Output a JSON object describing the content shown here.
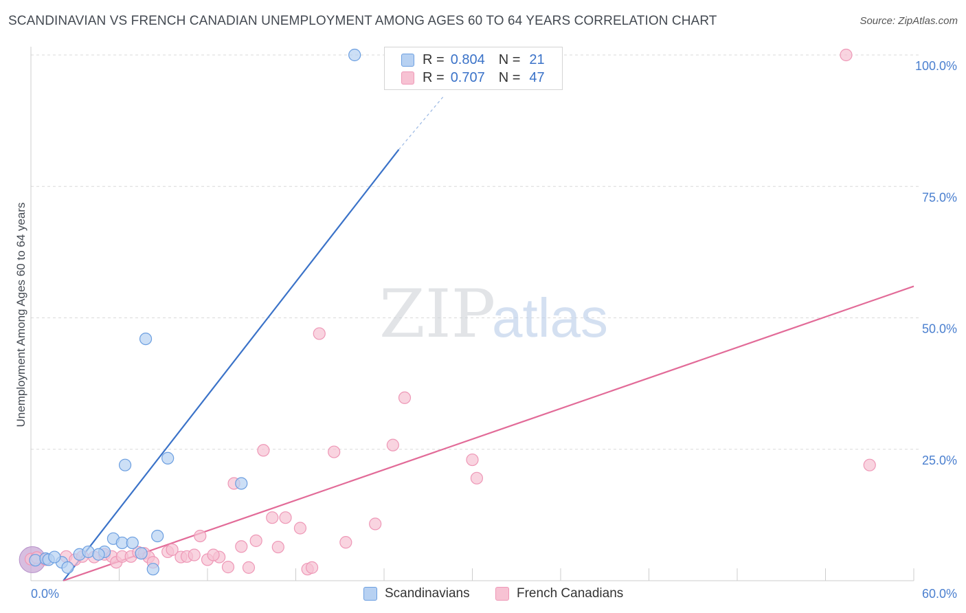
{
  "title": "SCANDINAVIAN VS FRENCH CANADIAN UNEMPLOYMENT AMONG AGES 60 TO 64 YEARS CORRELATION CHART",
  "source": "Source: ZipAtlas.com",
  "watermark": {
    "zip": "ZIP",
    "atlas": "atlas"
  },
  "colors": {
    "blue": "#3a72c8",
    "blue_fill": "#b7d1f2",
    "blue_stroke": "#6b9ee0",
    "pink": "#e26b98",
    "pink_fill": "#f7c2d3",
    "pink_stroke": "#ee97b6",
    "tick": "#4a7fcf",
    "grid": "#d9d9d9"
  },
  "legend": {
    "rows": [
      {
        "r_label": "R =",
        "r_value": "0.804",
        "n_label": "N =",
        "n_value": "21"
      },
      {
        "r_label": "R =",
        "r_value": "0.707",
        "n_label": "N =",
        "n_value": "47"
      }
    ]
  },
  "bottom_legend": [
    "Scandinavians",
    "French Canadians"
  ],
  "chart_data": {
    "type": "scatter",
    "title": "SCANDINAVIAN VS FRENCH CANADIAN UNEMPLOYMENT AMONG AGES 60 TO 64 YEARS CORRELATION CHART",
    "xlabel": "",
    "ylabel": "Unemployment Among Ages 60 to 64 years",
    "xlim": [
      0,
      60
    ],
    "ylim": [
      0,
      100
    ],
    "x_tick_labels": [
      "0.0%",
      "60.0%"
    ],
    "y_ticks": [
      25,
      50,
      75,
      100
    ],
    "y_tick_labels": [
      "25.0%",
      "50.0%",
      "75.0%",
      "100.0%"
    ],
    "grid": true,
    "series": [
      {
        "name": "Scandinavians",
        "R": 0.804,
        "N": 21,
        "points": [
          [
            0.3,
            3.9
          ],
          [
            1.0,
            4.2
          ],
          [
            1.2,
            4.0
          ],
          [
            2.1,
            3.5
          ],
          [
            2.5,
            2.5
          ],
          [
            3.3,
            5.0
          ],
          [
            3.9,
            5.5
          ],
          [
            5.0,
            5.5
          ],
          [
            5.6,
            8.0
          ],
          [
            6.2,
            7.2
          ],
          [
            6.4,
            22.0
          ],
          [
            6.9,
            7.2
          ],
          [
            7.5,
            5.2
          ],
          [
            7.8,
            46.0
          ],
          [
            8.3,
            2.2
          ],
          [
            8.6,
            8.5
          ],
          [
            9.3,
            23.3
          ],
          [
            14.3,
            18.5
          ],
          [
            22.0,
            100.0
          ],
          [
            1.6,
            4.5
          ],
          [
            4.6,
            5.0
          ]
        ],
        "trendline": {
          "x_start": 2.2,
          "y_start": 0.0,
          "x_end": 25.0,
          "y_end": 82.0,
          "dashed_to_x": 28.0,
          "dashed_to_y": 92.0
        }
      },
      {
        "name": "French Canadians",
        "R": 0.707,
        "N": 47,
        "points": [
          [
            0.0,
            4.1
          ],
          [
            1.0,
            4.0
          ],
          [
            2.4,
            4.6
          ],
          [
            3.0,
            4.0
          ],
          [
            3.5,
            4.6
          ],
          [
            4.3,
            4.5
          ],
          [
            5.0,
            5.0
          ],
          [
            5.5,
            4.6
          ],
          [
            5.8,
            3.5
          ],
          [
            6.2,
            4.6
          ],
          [
            6.8,
            4.6
          ],
          [
            7.3,
            5.4
          ],
          [
            7.7,
            5.2
          ],
          [
            8.0,
            4.5
          ],
          [
            8.3,
            3.5
          ],
          [
            9.3,
            5.5
          ],
          [
            9.6,
            5.9
          ],
          [
            10.2,
            4.5
          ],
          [
            10.6,
            4.6
          ],
          [
            11.1,
            4.9
          ],
          [
            11.5,
            8.5
          ],
          [
            12.0,
            4.0
          ],
          [
            12.8,
            4.5
          ],
          [
            12.4,
            4.9
          ],
          [
            13.4,
            2.6
          ],
          [
            13.8,
            18.5
          ],
          [
            14.3,
            6.5
          ],
          [
            14.8,
            2.5
          ],
          [
            15.3,
            7.6
          ],
          [
            15.8,
            24.8
          ],
          [
            16.4,
            12.0
          ],
          [
            16.8,
            6.4
          ],
          [
            17.3,
            12.0
          ],
          [
            18.3,
            10.0
          ],
          [
            18.8,
            2.2
          ],
          [
            19.1,
            2.5
          ],
          [
            19.6,
            47.0
          ],
          [
            20.6,
            24.5
          ],
          [
            21.4,
            7.3
          ],
          [
            23.4,
            10.8
          ],
          [
            24.6,
            25.8
          ],
          [
            25.4,
            34.8
          ],
          [
            30.0,
            23.0
          ],
          [
            30.3,
            19.5
          ],
          [
            55.4,
            100.0
          ],
          [
            57.0,
            22.0
          ],
          [
            0.4,
            4.4
          ]
        ],
        "trendline": {
          "x_start": 2.2,
          "y_start": 0.0,
          "x_end": 60.0,
          "y_end": 56.0
        }
      }
    ],
    "cluster_marker": {
      "series": "French Canadians",
      "x": 0.1,
      "y": 4.0,
      "note": "large overlapping cluster near origin"
    }
  }
}
